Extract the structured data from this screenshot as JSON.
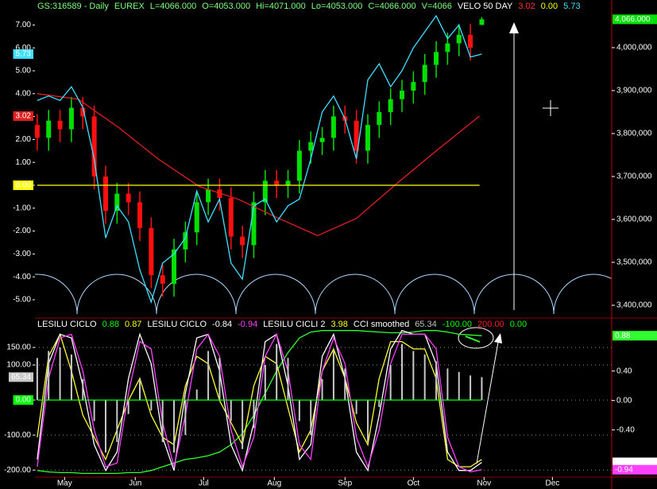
{
  "chart_data": [
    {
      "type": "candlestick",
      "header": [
        {
          "text": "GS:316589 - Daily",
          "color": "#7cff7c"
        },
        {
          "text": "EUREX",
          "color": "#7cff7c"
        },
        {
          "text": "L=4066.000",
          "color": "#7cff7c"
        },
        {
          "text": "O=4053.000",
          "color": "#7cff7c"
        },
        {
          "text": "Hi=4071.000",
          "color": "#7cff7c"
        },
        {
          "text": "Lo=4053.000",
          "color": "#7cff7c"
        },
        {
          "text": "C=4066.000",
          "color": "#7cff7c"
        },
        {
          "text": "V=4066",
          "color": "#7cff7c"
        },
        {
          "text": "VELO 50 DAY",
          "color": "#ffffff"
        },
        {
          "text": "3.02",
          "color": "#ff3030"
        },
        {
          "text": "0.00",
          "color": "#ffff00"
        },
        {
          "text": "5.73",
          "color": "#40e0ff"
        }
      ],
      "x": [
        -12,
        -7,
        -2,
        3,
        8,
        13,
        18,
        23,
        28,
        33,
        38,
        43,
        48,
        53,
        58,
        63,
        68,
        73,
        78,
        83,
        88,
        93,
        98,
        103,
        108,
        113,
        118,
        123,
        128,
        133,
        138,
        143,
        148,
        153,
        158,
        163,
        168,
        173,
        178,
        183
      ],
      "open": [
        3820000,
        3790000,
        3830000,
        3810000,
        3860000,
        3840000,
        3700000,
        3620000,
        3660000,
        3640000,
        3580000,
        3470000,
        3450000,
        3530000,
        3570000,
        3640000,
        3670000,
        3650000,
        3560000,
        3540000,
        3640000,
        3690000,
        3680000,
        3690000,
        3760000,
        3780000,
        3790000,
        3840000,
        3830000,
        3760000,
        3820000,
        3850000,
        3880000,
        3900000,
        3920000,
        3960000,
        3990000,
        4010000,
        4030000,
        4053000
      ],
      "high": [
        3845000,
        3855000,
        3855000,
        3885000,
        3885000,
        3865000,
        3725000,
        3685000,
        3685000,
        3665000,
        3605000,
        3495000,
        3555000,
        3595000,
        3665000,
        3695000,
        3695000,
        3675000,
        3585000,
        3665000,
        3715000,
        3715000,
        3715000,
        3785000,
        3805000,
        3815000,
        3865000,
        3865000,
        3855000,
        3845000,
        3875000,
        3905000,
        3925000,
        3945000,
        3985000,
        4015000,
        4035000,
        4055000,
        4055000,
        4071000
      ],
      "low": [
        3760000,
        3760000,
        3780000,
        3780000,
        3810000,
        3670000,
        3590000,
        3590000,
        3610000,
        3550000,
        3440000,
        3420000,
        3420000,
        3500000,
        3540000,
        3610000,
        3620000,
        3530000,
        3510000,
        3510000,
        3610000,
        3650000,
        3650000,
        3660000,
        3730000,
        3750000,
        3760000,
        3800000,
        3730000,
        3730000,
        3790000,
        3820000,
        3850000,
        3870000,
        3890000,
        3930000,
        3960000,
        3980000,
        3970000,
        4053000
      ],
      "close": [
        3790000,
        3830000,
        3810000,
        3860000,
        3840000,
        3700000,
        3620000,
        3660000,
        3640000,
        3580000,
        3470000,
        3450000,
        3530000,
        3570000,
        3640000,
        3670000,
        3650000,
        3560000,
        3540000,
        3640000,
        3690000,
        3680000,
        3690000,
        3760000,
        3780000,
        3790000,
        3840000,
        3830000,
        3760000,
        3820000,
        3850000,
        3880000,
        3900000,
        3920000,
        3960000,
        3990000,
        4010000,
        4030000,
        4000000,
        4066000
      ],
      "color_up": "#00e000",
      "color_down": "#ff1010",
      "last_price_label": "4,066.000",
      "xlim": [
        -13,
        240
      ],
      "ylim": [
        -5.73,
        8.09
      ],
      "yticks": [
        {
          "value": 7,
          "label": "7.00"
        },
        {
          "value": 6,
          "label": "6.00"
        },
        {
          "value": 5,
          "label": "5.00"
        },
        {
          "value": 4,
          "label": "4.00"
        },
        {
          "value": 3,
          "label": "3.00"
        },
        {
          "value": 2,
          "label": "2.00"
        },
        {
          "value": 1,
          "label": "1.00"
        },
        {
          "value": 0,
          "label": "0.00"
        },
        {
          "value": -1,
          "label": "-1.00"
        },
        {
          "value": -2,
          "label": "-2.00"
        },
        {
          "value": -3,
          "label": "-3.00"
        },
        {
          "value": -4,
          "label": "-4.00"
        },
        {
          "value": -5,
          "label": "-5.00"
        }
      ],
      "y2lim": [
        3374000,
        4111000
      ],
      "y2ticks": [
        {
          "value": 4000000,
          "label": "4,000,000"
        },
        {
          "value": 3900000,
          "label": "3,900,000"
        },
        {
          "value": 3800000,
          "label": "3,800,000"
        },
        {
          "value": 3700000,
          "label": "3,700,000"
        },
        {
          "value": 3600000,
          "label": "3,600,000"
        },
        {
          "value": 3500000,
          "label": "3,500,000"
        },
        {
          "value": 3400000,
          "label": "3,400,000"
        }
      ],
      "grid": false,
      "series": [
        {
          "color": "#e02020",
          "x": [
            -12,
            6,
            24,
            41,
            59,
            76,
            94,
            111,
            128,
            146,
            163,
            182
          ],
          "values": [
            4.0,
            3.76,
            2.5,
            1.15,
            -0.05,
            -0.6,
            -1.45,
            -2.2,
            -1.45,
            0.1,
            1.5,
            3.02
          ]
        },
        {
          "color": "#ffff00",
          "x": [
            -12,
            182
          ],
          "values": [
            0,
            0
          ]
        },
        {
          "color": "#40e0ff",
          "values": [
            3.7,
            3.9,
            3.7,
            4.3,
            3.4,
            1.15,
            -2.3,
            -0.9,
            -1.6,
            -3.7,
            -5.1,
            -3.4,
            -3.0,
            -2.3,
            -0.25,
            -1.6,
            -0.6,
            -3.4,
            -4.1,
            -0.9,
            -0.6,
            -1.6,
            -0.9,
            -0.6,
            1.15,
            3.2,
            3.9,
            2.9,
            1.15,
            4.6,
            5.3,
            4.3,
            5.0,
            6.0,
            6.7,
            7.4,
            6.4,
            7.0,
            5.6,
            5.73
          ]
        }
      ]
    },
    {
      "type": "line",
      "header": [
        {
          "text": "LESILU CICLO",
          "color": "#ffffff"
        },
        {
          "text": "0.88",
          "color": "#00ff00"
        },
        {
          "text": "0.87",
          "color": "#ffff00"
        },
        {
          "text": "LESILU CICLO",
          "color": "#ffffff"
        },
        {
          "text": "-0.84",
          "color": "#ffffff"
        },
        {
          "text": "-0.94",
          "color": "#ff40ff"
        },
        {
          "text": "LESILU CICLI 2",
          "color": "#ffffff"
        },
        {
          "text": "3.98",
          "color": "#ffff00"
        },
        {
          "text": "CCI smoothed",
          "color": "#ffffff"
        },
        {
          "text": "65.34",
          "color": "#c0c0c0"
        },
        {
          "text": "-100.00",
          "color": "#00ff00"
        },
        {
          "text": "200.00",
          "color": "#ff2020"
        },
        {
          "text": "0.00",
          "color": "#00ff00"
        }
      ],
      "x": [
        -12,
        -7,
        -2,
        3,
        8,
        13,
        18,
        23,
        28,
        33,
        38,
        43,
        48,
        53,
        58,
        63,
        68,
        73,
        78,
        83,
        88,
        93,
        98,
        103,
        108,
        113,
        118,
        123,
        128,
        133,
        138,
        143,
        148,
        153,
        158,
        163,
        168,
        173,
        178,
        183
      ],
      "xlim": [
        -13,
        240
      ],
      "xticks": [
        {
          "value": 0,
          "label": "May"
        },
        {
          "value": 31,
          "label": "Jun"
        },
        {
          "value": 61,
          "label": "Jul"
        },
        {
          "value": 92,
          "label": "Aug"
        },
        {
          "value": 123,
          "label": "Sep"
        },
        {
          "value": 153,
          "label": "Oct"
        },
        {
          "value": 184,
          "label": "Nov"
        },
        {
          "value": 214,
          "label": "Dec"
        }
      ],
      "ylim": [
        -220,
        234
      ],
      "yticks": [
        {
          "value": 150,
          "label": "150.00"
        },
        {
          "value": 100,
          "label": "100.00"
        },
        {
          "value": 0,
          "label": "0.00"
        },
        {
          "value": -100,
          "label": "-100.00"
        },
        {
          "value": -200,
          "label": "-200.00"
        }
      ],
      "y2lim": [
        -1.04,
        1.12
      ],
      "y2ticks": [
        {
          "value": 0.4,
          "label": "0.40"
        },
        {
          "value": 0,
          "label": "0.00"
        },
        {
          "value": -0.4,
          "label": "-0.40"
        }
      ],
      "grid": true,
      "series": [
        {
          "color": "#30ff30",
          "axis": "y2",
          "values": [
            -0.95,
            -0.97,
            -0.98,
            -0.98,
            -0.99,
            -0.99,
            -0.99,
            -0.99,
            -0.98,
            -0.98,
            -0.95,
            -0.9,
            -0.85,
            -0.8,
            -0.78,
            -0.75,
            -0.7,
            -0.6,
            -0.45,
            -0.2,
            0.1,
            0.4,
            0.65,
            0.85,
            0.93,
            0.95,
            0.95,
            0.95,
            0.95,
            0.94,
            0.93,
            0.92,
            0.92,
            0.93,
            0.95,
            0.95,
            0.93,
            0.9,
            0.89,
            0.88
          ]
        },
        {
          "color": "#ffff30",
          "axis": "y2",
          "values": [
            -0.5,
            0.6,
            0.9,
            0.4,
            -0.2,
            -0.5,
            -0.8,
            -0.4,
            0.0,
            0.3,
            -0.2,
            -0.5,
            -0.6,
            0.2,
            0.6,
            0.5,
            0.0,
            -0.3,
            -0.6,
            0.2,
            0.6,
            0.5,
            -0.1,
            -0.7,
            -0.4,
            0.4,
            0.7,
            0.3,
            -0.3,
            -0.6,
            0.3,
            0.8,
            0.8,
            0.7,
            0.7,
            0.3,
            -0.8,
            -0.9,
            -0.9,
            -0.8
          ]
        },
        {
          "color": "#ffffff",
          "axis": "y2",
          "values": [
            -0.8,
            0.5,
            0.9,
            0.85,
            0.2,
            -0.6,
            -0.95,
            -0.7,
            0.3,
            0.9,
            0.5,
            -0.5,
            -0.95,
            0.1,
            0.85,
            0.9,
            0.4,
            -0.6,
            -0.95,
            -0.3,
            0.8,
            0.9,
            0.2,
            -0.8,
            -0.6,
            0.6,
            0.9,
            0.3,
            -0.7,
            -0.95,
            -0.2,
            0.7,
            0.95,
            0.9,
            0.9,
            0.5,
            -0.7,
            -0.95,
            -0.95,
            -0.84
          ]
        },
        {
          "color": "#ff40ff",
          "axis": "y2",
          "values": [
            -0.9,
            0.3,
            0.85,
            0.9,
            0.4,
            -0.4,
            -0.9,
            -0.85,
            0.1,
            0.8,
            0.7,
            -0.3,
            -0.9,
            -0.2,
            0.7,
            0.9,
            0.6,
            -0.4,
            -0.9,
            -0.5,
            0.6,
            0.9,
            0.4,
            -0.6,
            -0.8,
            0.4,
            0.85,
            0.5,
            -0.5,
            -0.9,
            -0.4,
            0.5,
            0.9,
            0.9,
            0.9,
            0.7,
            -0.5,
            -0.9,
            -0.97,
            -0.94
          ]
        },
        {
          "color": "#c8c8c8",
          "style": "bar",
          "values": [
            120,
            140,
            150,
            130,
            60,
            -60,
            -150,
            -120,
            -40,
            60,
            -30,
            -120,
            -150,
            -100,
            30,
            140,
            120,
            -60,
            -140,
            -80,
            100,
            160,
            120,
            -60,
            -100,
            60,
            140,
            90,
            -40,
            -120,
            -20,
            100,
            160,
            140,
            130,
            110,
            90,
            80,
            70,
            65.34
          ]
        },
        {
          "color": "#00ff00",
          "x": [
            -12,
            183
          ],
          "values": [
            0,
            0
          ]
        }
      ]
    }
  ]
}
